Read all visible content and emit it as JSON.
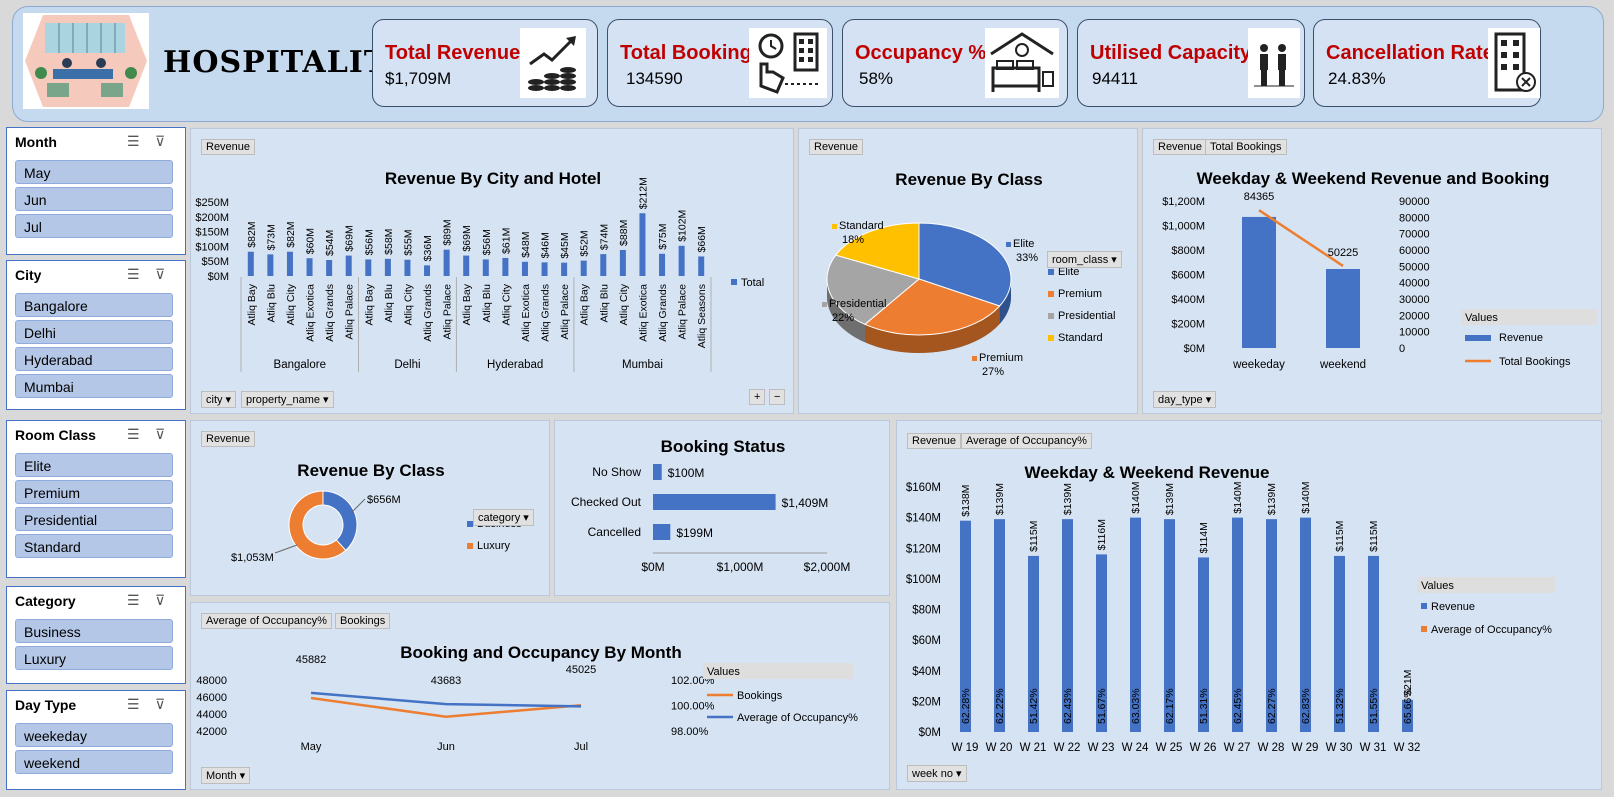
{
  "header": {
    "brand": "HOSPITALITY",
    "kpis": [
      {
        "title": "Total Revenue",
        "value": "$1,709M",
        "icon": "revenue-growth-icon"
      },
      {
        "title": "Total Booking",
        "value": "134590",
        "icon": "booking-icon"
      },
      {
        "title": "Occupancy %",
        "value": "58%",
        "icon": "bed-icon"
      },
      {
        "title": "Utilised Capacity",
        "value": "94411",
        "icon": "people-icon"
      },
      {
        "title": "Cancellation Rate",
        "value": "24.83%",
        "icon": "hotel-cancel-icon"
      }
    ]
  },
  "slicers": {
    "month": {
      "title": "Month",
      "items": [
        "May",
        "Jun",
        "Jul"
      ]
    },
    "city": {
      "title": "City",
      "items": [
        "Bangalore",
        "Delhi",
        "Hyderabad",
        "Mumbai"
      ]
    },
    "room_class": {
      "title": "Room Class",
      "items": [
        "Elite",
        "Premium",
        "Presidential",
        "Standard"
      ]
    },
    "category": {
      "title": "Category",
      "items": [
        "Business",
        "Luxury"
      ]
    },
    "day_type": {
      "title": "Day Type",
      "items": [
        "weekeday",
        "weekend"
      ]
    }
  },
  "panel_city": {
    "tag": "Revenue",
    "filter1": "city",
    "filter2": "property_name",
    "plus": "+",
    "minus": "−"
  },
  "panel_class_pie": {
    "tag": "Revenue"
  },
  "panel_weekday": {
    "tag1": "Revenue",
    "tag2": "Total Bookings",
    "filter": "day_type"
  },
  "panel_donut": {
    "tag": "Revenue"
  },
  "panel_occ_month": {
    "tag1": "Average of Occupancy%",
    "tag2": "Bookings",
    "filter": "Month"
  },
  "panel_weekly": {
    "tag1": "Revenue",
    "tag2": "Average of Occupancy%",
    "filter": "week no"
  },
  "chart_data": [
    {
      "type": "bar",
      "title": "Revenue By City and Hotel",
      "groups": [
        "Bangalore",
        "Delhi",
        "Hyderabad",
        "Mumbai"
      ],
      "categories": [
        "Atliq Bay",
        "Atliq Blu",
        "Atliq City",
        "Atliq Exotica",
        "Atliq Grands",
        "Atliq Palace",
        "Atliq Bay",
        "Atliq Blu",
        "Atliq City",
        "Atliq Grands",
        "Atliq Palace",
        "Atliq Bay",
        "Atliq Blu",
        "Atliq City",
        "Atliq Exotica",
        "Atliq Grands",
        "Atliq Palace",
        "Atliq Bay",
        "Atliq Blu",
        "Atliq City",
        "Atliq Exotica",
        "Atliq Grands",
        "Atliq Palace",
        "Atliq Seasons"
      ],
      "group_sizes": [
        6,
        5,
        6,
        7
      ],
      "values": [
        82,
        73,
        82,
        60,
        54,
        69,
        56,
        58,
        55,
        36,
        89,
        69,
        56,
        61,
        48,
        46,
        45,
        52,
        74,
        88,
        212,
        75,
        102,
        66
      ],
      "labels": [
        "$82M",
        "$73M",
        "$82M",
        "$60M",
        "$54M",
        "$69M",
        "$56M",
        "$58M",
        "$55M",
        "$36M",
        "$89M",
        "$69M",
        "$56M",
        "$61M",
        "$48M",
        "$46M",
        "$45M",
        "$52M",
        "$74M",
        "$88M",
        "$212M",
        "$75M",
        "$102M",
        "$66M"
      ],
      "yticks": [
        "$250M",
        "$200M",
        "$150M",
        "$100M",
        "$50M",
        "$0M"
      ],
      "ylim": [
        0,
        250
      ],
      "legend": [
        "Total"
      ],
      "color": "#4472c4"
    },
    {
      "type": "pie",
      "title": "Revenue By Class",
      "legend_title": "room_class",
      "slices": [
        {
          "name": "Elite",
          "pct": 33,
          "label": "33%",
          "color": "#4472c4"
        },
        {
          "name": "Premium",
          "pct": 27,
          "label": "27%",
          "color": "#ed7d31"
        },
        {
          "name": "Presidential",
          "pct": 22,
          "label": "22%",
          "color": "#a5a5a5"
        },
        {
          "name": "Standard",
          "pct": 18,
          "label": "18%",
          "color": "#ffc000"
        }
      ]
    },
    {
      "type": "bar",
      "title": "Weekday & Weekend Revenue and Booking",
      "categories": [
        "weekeday",
        "weekend"
      ],
      "series": [
        {
          "name": "Revenue",
          "values": [
            1070,
            645
          ],
          "color": "#4472c4"
        },
        {
          "name": "Total Bookings",
          "values": [
            84365,
            50225
          ],
          "labels": [
            "84365",
            "50225"
          ],
          "color": "#ed7d31"
        }
      ],
      "yticks_left": [
        "$1,200M",
        "$1,000M",
        "$800M",
        "$600M",
        "$400M",
        "$200M",
        "$0M"
      ],
      "yticks_right": [
        "90000",
        "80000",
        "70000",
        "60000",
        "50000",
        "40000",
        "30000",
        "20000",
        "10000",
        "0"
      ],
      "legend_title": "Values"
    },
    {
      "type": "pie",
      "title": "Revenue By Class",
      "legend_title": "category",
      "slices": [
        {
          "name": "Business",
          "value": 656,
          "label": "$656M",
          "color": "#4472c4"
        },
        {
          "name": "Luxury",
          "value": 1053,
          "label": "$1,053M",
          "color": "#ed7d31"
        }
      ]
    },
    {
      "type": "bar",
      "title": "Booking Status",
      "categories": [
        "No Show",
        "Checked Out",
        "Cancelled"
      ],
      "values": [
        100,
        1409,
        199
      ],
      "labels": [
        "$100M",
        "$1,409M",
        "$199M"
      ],
      "xticks": [
        "$0M",
        "$1,000M",
        "$2,000M"
      ],
      "xlim": [
        0,
        2000
      ],
      "color": "#4472c4"
    },
    {
      "type": "line",
      "title": "Booking and Occupancy By Month",
      "categories": [
        "May",
        "Jun",
        "Jul"
      ],
      "series": [
        {
          "name": "Bookings",
          "values": [
            45882,
            43683,
            45025
          ],
          "color": "#ed7d31"
        },
        {
          "name": "Average of Occupancy%",
          "values": [
            100.99,
            100.11,
            99.93
          ],
          "color": "#4472c4"
        }
      ],
      "data_labels": [
        "45882",
        "43683",
        "45025"
      ],
      "yticks_left": [
        "48000",
        "46000",
        "44000",
        "42000"
      ],
      "yticks_right": [
        "102.00%",
        "100.00%",
        "98.00%"
      ],
      "legend_title": "Values"
    },
    {
      "type": "bar",
      "title": "Weekday & Weekend Revenue",
      "categories": [
        "W 19",
        "W 20",
        "W 21",
        "W 22",
        "W 23",
        "W 24",
        "W 25",
        "W 26",
        "W 27",
        "W 28",
        "W 29",
        "W 30",
        "W 31",
        "W 32"
      ],
      "values": [
        138,
        139,
        115,
        139,
        116,
        140,
        139,
        114,
        140,
        139,
        140,
        115,
        115,
        21
      ],
      "labels": [
        "$138M",
        "$139M",
        "$115M",
        "$139M",
        "$116M",
        "$140M",
        "$139M",
        "$114M",
        "$140M",
        "$139M",
        "$140M",
        "$115M",
        "$115M",
        "$21M"
      ],
      "occupancy_labels": [
        "62.28%",
        "62.22%",
        "51.42%",
        "62.43%",
        "51.67%",
        "63.03%",
        "62.17%",
        "51.31%",
        "62.45%",
        "62.27%",
        "62.83%",
        "51.32%",
        "51.55%",
        "65.66%"
      ],
      "yticks": [
        "$160M",
        "$140M",
        "$120M",
        "$100M",
        "$80M",
        "$60M",
        "$40M",
        "$20M",
        "$0M"
      ],
      "ylim": [
        0,
        160
      ],
      "legend_title": "Values",
      "legend": [
        "Revenue",
        "Average of Occupancy%"
      ]
    }
  ]
}
